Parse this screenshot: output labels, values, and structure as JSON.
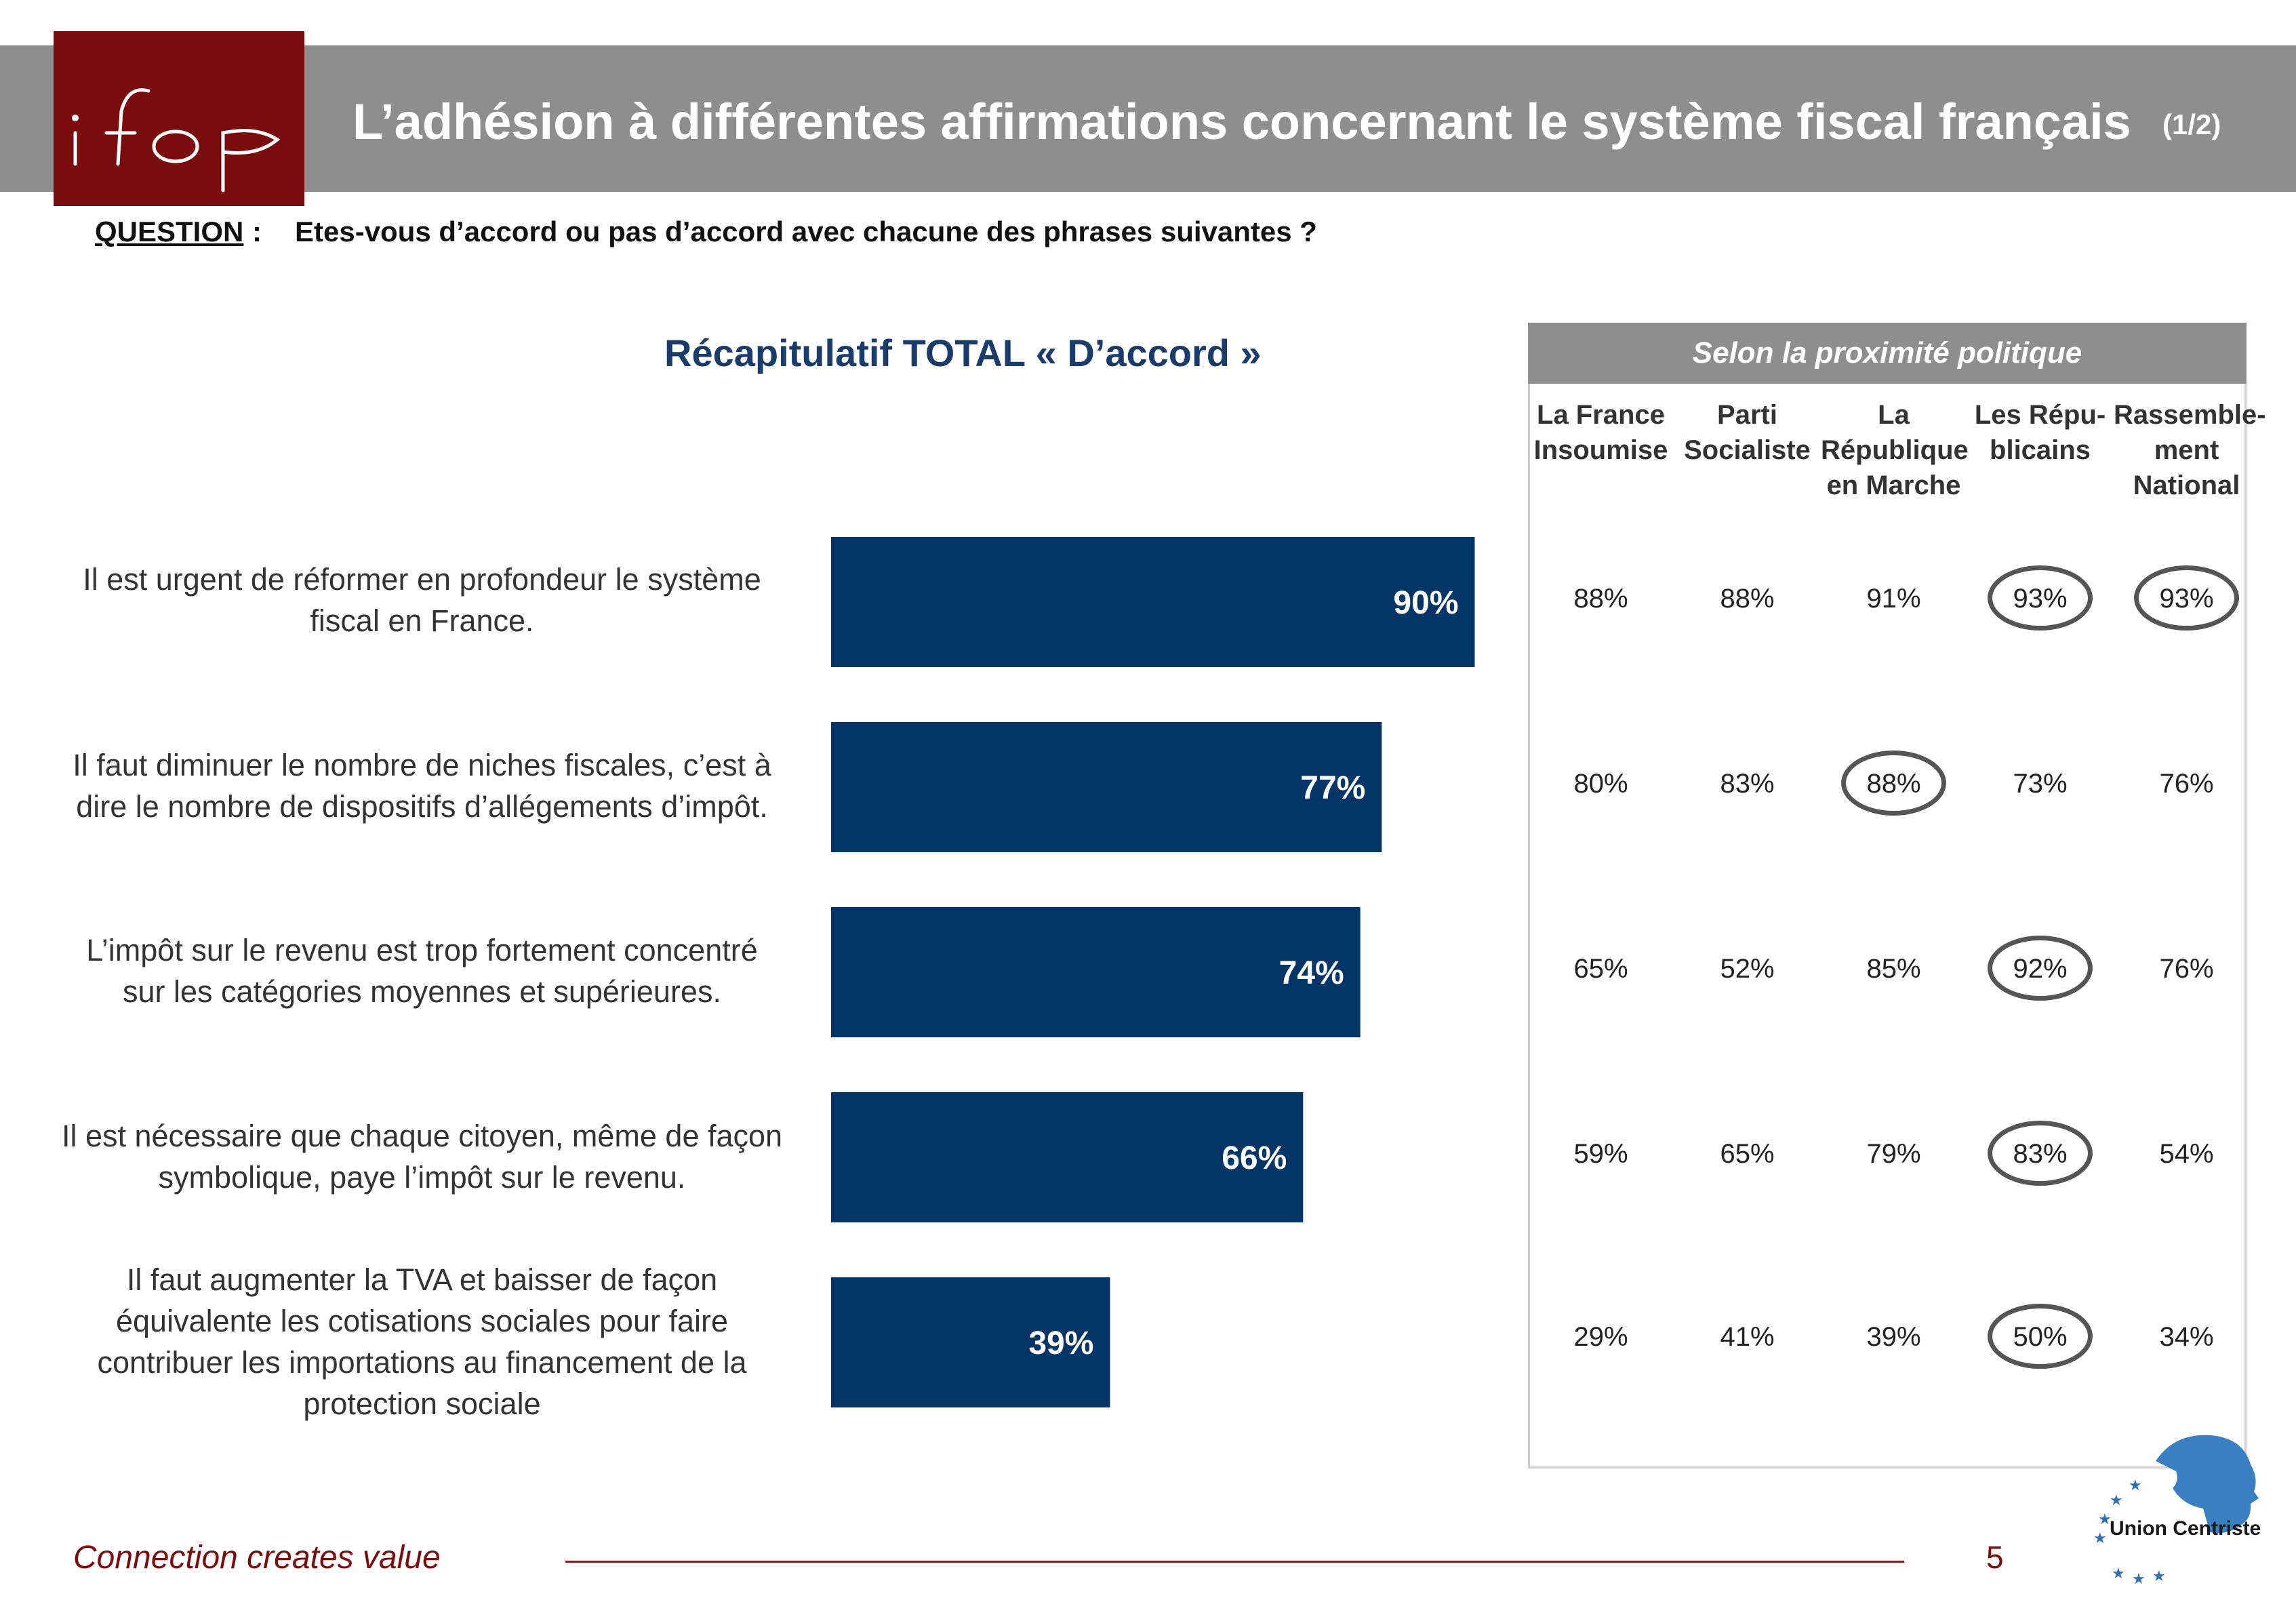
{
  "header": {
    "logo_text": "ifop",
    "title": "L’adhésion à différentes affirmations concernant le système fiscal français",
    "page_count": "(1/2)"
  },
  "question": {
    "label": "QUESTION",
    "colon": ":",
    "text": "Etes-vous d’accord ou pas d’accord avec chacune des phrases suivantes ?"
  },
  "chart_data": {
    "type": "bar",
    "orientation": "horizontal",
    "title": "Récapitulatif TOTAL « D’accord »",
    "categories": [
      "Il est urgent de réformer en profondeur le système fiscal en France.",
      "Il faut diminuer le nombre de niches fiscales, c’est à dire le nombre de dispositifs d’allégements d’impôt.",
      "L’impôt sur le revenu est trop fortement concentré sur les catégories moyennes et supérieures.",
      "Il est nécessaire que chaque citoyen, même de façon symbolique, paye l’impôt sur le revenu.",
      "Il faut augmenter la TVA et baisser de façon équivalente les cotisations sociales pour faire contribuer les importations au financement de la protection sociale"
    ],
    "values": [
      90,
      77,
      74,
      66,
      39
    ],
    "value_labels": [
      "90%",
      "77%",
      "74%",
      "66%",
      "39%"
    ],
    "bar_color": "#033566"
  },
  "labels": {
    "row1": [
      "Il est urgent de réformer en profondeur le système",
      "fiscal en France."
    ],
    "row2": [
      "Il faut diminuer le nombre de niches fiscales, c’est à",
      "dire le nombre de dispositifs d’allégements d’impôt."
    ],
    "row3": [
      "L’impôt sur le revenu est trop fortement concentré",
      "sur les catégories moyennes et supérieures."
    ],
    "row4": [
      "Il est nécessaire que chaque citoyen, même de façon",
      "symbolique, paye l’impôt sur le revenu."
    ],
    "row5": [
      "Il faut augmenter la TVA et baisser de façon",
      "équivalente les cotisations sociales pour faire",
      "contribuer les importations au financement de la",
      "protection sociale"
    ]
  },
  "political_table": {
    "title": "Selon la proximité politique",
    "columns": [
      [
        "La France",
        "Insoumise"
      ],
      [
        "Parti",
        "Socialiste"
      ],
      [
        "La",
        "République",
        "en Marche"
      ],
      [
        "Les Répu-",
        "blicains"
      ],
      [
        "Rassemble-",
        "ment",
        "National"
      ]
    ],
    "rows": [
      [
        "88%",
        "88%",
        "91%",
        "93%",
        "93%"
      ],
      [
        "80%",
        "83%",
        "88%",
        "73%",
        "76%"
      ],
      [
        "65%",
        "52%",
        "85%",
        "92%",
        "76%"
      ],
      [
        "59%",
        "65%",
        "79%",
        "83%",
        "54%"
      ],
      [
        "29%",
        "41%",
        "39%",
        "50%",
        "34%"
      ]
    ],
    "highlighted": [
      [
        0,
        3
      ],
      [
        0,
        4
      ],
      [
        1,
        2
      ],
      [
        2,
        3
      ],
      [
        3,
        3
      ],
      [
        4,
        3
      ]
    ]
  },
  "footer": {
    "tagline": "Connection creates value",
    "page_number": "5",
    "partner_logo": "Union Centriste"
  }
}
